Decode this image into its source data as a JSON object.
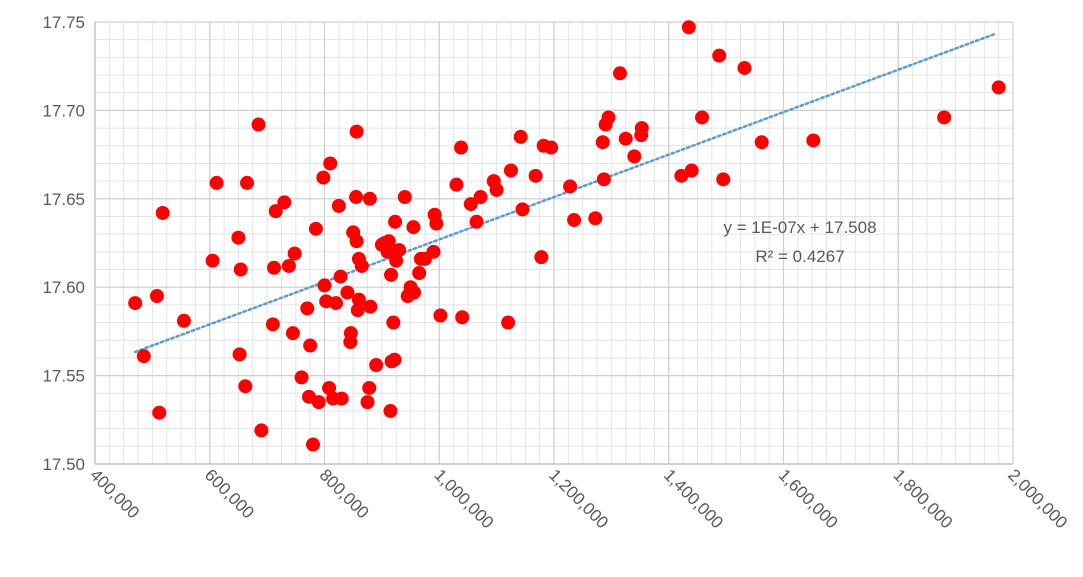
{
  "chart_data": {
    "type": "scatter",
    "title": "",
    "xlabel": "",
    "ylabel": "",
    "xlim": [
      400000,
      2000000
    ],
    "ylim": [
      17.5,
      17.75
    ],
    "x_ticks": [
      400000,
      600000,
      800000,
      1000000,
      1200000,
      1400000,
      1600000,
      1800000,
      2000000
    ],
    "x_tick_labels": [
      "400,000",
      "600,000",
      "800,000",
      "1,000,000",
      "1,200,000",
      "1,400,000",
      "1,600,000",
      "1,800,000",
      "2,000,000"
    ],
    "y_ticks": [
      17.5,
      17.55,
      17.6,
      17.65,
      17.7,
      17.75
    ],
    "y_tick_labels": [
      "17.50",
      "17.55",
      "17.60",
      "17.65",
      "17.70",
      "17.75"
    ],
    "grid": true,
    "point_color": "#ff0000",
    "trendline": {
      "type": "linear",
      "slope": 1.2e-07,
      "intercept": 17.507,
      "x_range": [
        470000,
        1970000
      ],
      "color": "#5b9bd5",
      "style": "dotted",
      "equation": "y = 1E-07x + 17.508",
      "r_squared": "R² = 0.4267"
    },
    "points": [
      [
        470000,
        17.591
      ],
      [
        485000,
        17.561
      ],
      [
        508000,
        17.595
      ],
      [
        512000,
        17.529
      ],
      [
        518000,
        17.642
      ],
      [
        555000,
        17.581
      ],
      [
        605000,
        17.615
      ],
      [
        612000,
        17.659
      ],
      [
        650000,
        17.628
      ],
      [
        652000,
        17.562
      ],
      [
        654000,
        17.61
      ],
      [
        662000,
        17.544
      ],
      [
        665000,
        17.659
      ],
      [
        685000,
        17.692
      ],
      [
        690000,
        17.519
      ],
      [
        710000,
        17.579
      ],
      [
        712000,
        17.611
      ],
      [
        715000,
        17.643
      ],
      [
        730000,
        17.648
      ],
      [
        738000,
        17.612
      ],
      [
        745000,
        17.574
      ],
      [
        748000,
        17.619
      ],
      [
        760000,
        17.549
      ],
      [
        770000,
        17.588
      ],
      [
        773000,
        17.538
      ],
      [
        775000,
        17.567
      ],
      [
        780000,
        17.511
      ],
      [
        785000,
        17.633
      ],
      [
        790000,
        17.535
      ],
      [
        798000,
        17.662
      ],
      [
        800000,
        17.601
      ],
      [
        803000,
        17.592
      ],
      [
        808000,
        17.543
      ],
      [
        810000,
        17.67
      ],
      [
        815000,
        17.537
      ],
      [
        820000,
        17.591
      ],
      [
        825000,
        17.646
      ],
      [
        828000,
        17.606
      ],
      [
        830000,
        17.537
      ],
      [
        840000,
        17.597
      ],
      [
        845000,
        17.569
      ],
      [
        846000,
        17.574
      ],
      [
        850000,
        17.631
      ],
      [
        855000,
        17.651
      ],
      [
        856000,
        17.688
      ],
      [
        856000,
        17.626
      ],
      [
        858000,
        17.587
      ],
      [
        860000,
        17.593
      ],
      [
        860000,
        17.616
      ],
      [
        865000,
        17.612
      ],
      [
        875000,
        17.535
      ],
      [
        878000,
        17.543
      ],
      [
        879000,
        17.65
      ],
      [
        880000,
        17.589
      ],
      [
        890000,
        17.556
      ],
      [
        900000,
        17.624
      ],
      [
        905000,
        17.625
      ],
      [
        910000,
        17.62
      ],
      [
        912000,
        17.626
      ],
      [
        915000,
        17.53
      ],
      [
        916000,
        17.607
      ],
      [
        917000,
        17.558
      ],
      [
        920000,
        17.58
      ],
      [
        922000,
        17.559
      ],
      [
        923000,
        17.637
      ],
      [
        925000,
        17.615
      ],
      [
        930000,
        17.621
      ],
      [
        940000,
        17.651
      ],
      [
        945000,
        17.595
      ],
      [
        950000,
        17.6
      ],
      [
        955000,
        17.634
      ],
      [
        956000,
        17.597
      ],
      [
        965000,
        17.608
      ],
      [
        968000,
        17.616
      ],
      [
        975000,
        17.616
      ],
      [
        990000,
        17.62
      ],
      [
        992000,
        17.641
      ],
      [
        995000,
        17.636
      ],
      [
        1002000,
        17.584
      ],
      [
        1030000,
        17.658
      ],
      [
        1038000,
        17.679
      ],
      [
        1040000,
        17.583
      ],
      [
        1055000,
        17.647
      ],
      [
        1065000,
        17.637
      ],
      [
        1072000,
        17.651
      ],
      [
        1095000,
        17.66
      ],
      [
        1100000,
        17.655
      ],
      [
        1120000,
        17.58
      ],
      [
        1125000,
        17.666
      ],
      [
        1142000,
        17.685
      ],
      [
        1145000,
        17.644
      ],
      [
        1168000,
        17.663
      ],
      [
        1178000,
        17.617
      ],
      [
        1182000,
        17.68
      ],
      [
        1195000,
        17.679
      ],
      [
        1228000,
        17.657
      ],
      [
        1235000,
        17.638
      ],
      [
        1272000,
        17.639
      ],
      [
        1285000,
        17.682
      ],
      [
        1287000,
        17.661
      ],
      [
        1290000,
        17.692
      ],
      [
        1295000,
        17.696
      ],
      [
        1315000,
        17.721
      ],
      [
        1325000,
        17.684
      ],
      [
        1340000,
        17.674
      ],
      [
        1352000,
        17.686
      ],
      [
        1353000,
        17.69
      ],
      [
        1422000,
        17.663
      ],
      [
        1435000,
        17.747
      ],
      [
        1440000,
        17.666
      ],
      [
        1458000,
        17.696
      ],
      [
        1488000,
        17.731
      ],
      [
        1495000,
        17.661
      ],
      [
        1532000,
        17.724
      ],
      [
        1562000,
        17.682
      ],
      [
        1652000,
        17.683
      ],
      [
        1880000,
        17.696
      ],
      [
        1975000,
        17.713
      ]
    ]
  }
}
